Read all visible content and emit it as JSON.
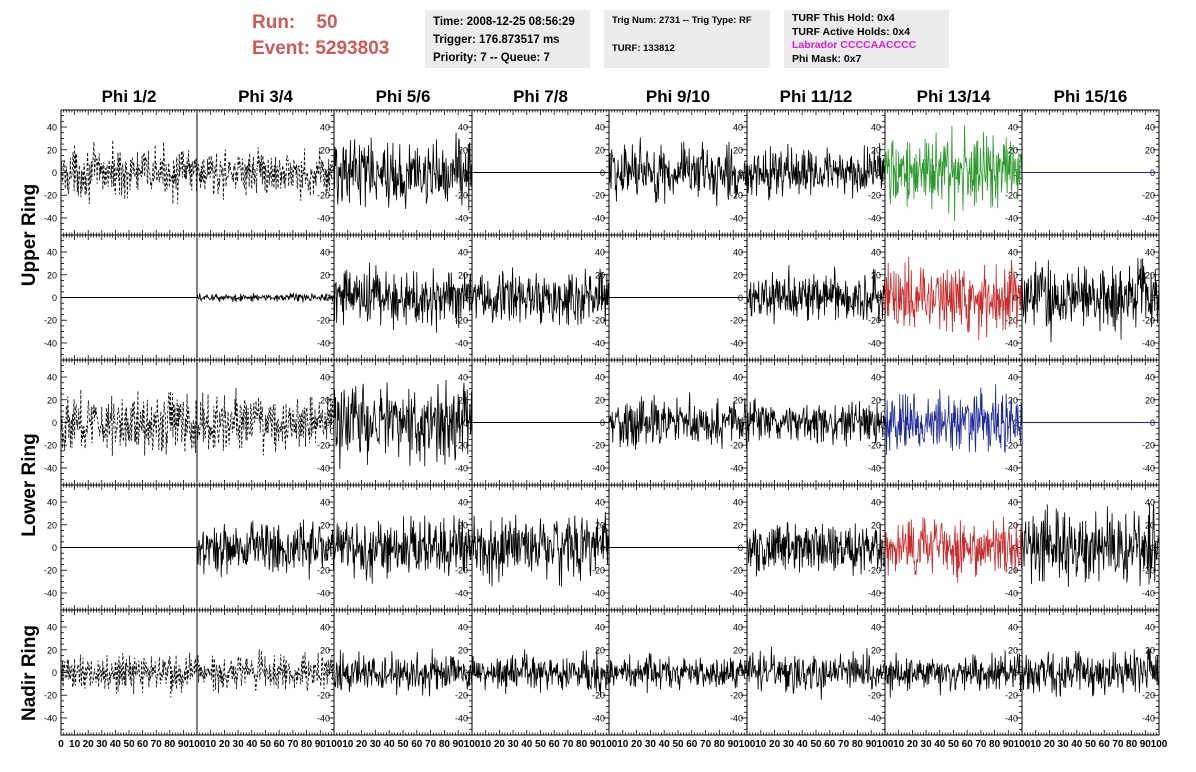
{
  "header": {
    "run_label": "Run:",
    "run_value": "50",
    "event_label": "Event:",
    "event_value": "5293803",
    "time_line": "Time: 2008-12-25 08:56:29",
    "trigger_line": "Trigger: 176.873517 ms",
    "priority_line": "Priority: 7 -- Queue: 7",
    "trig_line": "Trig Num: 2731 -- Trig Type: RF",
    "turf_line": "TURF: 133812",
    "turf_hold_line": "TURF This Hold: 0x4",
    "turf_active_line": "TURF Active Holds: 0x4",
    "labrador_line": "Labrador CCCCAACCCC",
    "phi_mask_line": "Phi Mask: 0x7"
  },
  "colors": {
    "run_text": "#cc5a55",
    "labrador_text": "#e01ad6",
    "trace_default": "#000000",
    "trace_green": "#2a9a2a",
    "trace_red": "#cc2a2a",
    "trace_blue": "#1e2a9a",
    "info_box_bg": "#ececec"
  },
  "chart_data": {
    "type": "line",
    "columns": [
      "Phi 1/2",
      "Phi 3/4",
      "Phi 5/6",
      "Phi 7/8",
      "Phi 9/10",
      "Phi 11/12",
      "Phi 13/14",
      "Phi 15/16"
    ],
    "rows": [
      "Upper Ring",
      "Upper Ring",
      "Lower Ring",
      "Lower Ring",
      "Nadir Ring"
    ],
    "row_labels": [
      "Upper Ring",
      "Lower Ring",
      "Nadir Ring"
    ],
    "xlim": [
      0,
      100
    ],
    "ylim": [
      -55,
      55
    ],
    "x_ticks": [
      "0",
      "10",
      "20",
      "30",
      "40",
      "50",
      "60",
      "70",
      "80",
      "90",
      "100"
    ],
    "y_ticks": [
      "-40",
      "-20",
      "0",
      "20",
      "40"
    ],
    "panels": [
      [
        {
          "style": "dashed",
          "amp": 18,
          "color": "trace_default"
        },
        {
          "style": "dashed",
          "amp": 16,
          "color": "trace_default"
        },
        {
          "style": "noise",
          "amp": 25,
          "color": "trace_default"
        },
        {
          "style": "flat",
          "amp": 0,
          "color": "trace_default"
        },
        {
          "style": "noise",
          "amp": 22,
          "color": "trace_default"
        },
        {
          "style": "noise",
          "amp": 18,
          "color": "trace_default"
        },
        {
          "style": "noise",
          "amp": 28,
          "color": "trace_green"
        },
        {
          "style": "flat",
          "amp": 0,
          "color": "trace_blue"
        }
      ],
      [
        {
          "style": "flat",
          "amp": 0,
          "color": "trace_default"
        },
        {
          "style": "noise",
          "amp": 3,
          "color": "trace_default"
        },
        {
          "style": "noise",
          "amp": 22,
          "color": "trace_default"
        },
        {
          "style": "noise",
          "amp": 20,
          "color": "trace_default"
        },
        {
          "style": "flat",
          "amp": 0,
          "color": "trace_default"
        },
        {
          "style": "noise",
          "amp": 18,
          "color": "trace_default"
        },
        {
          "style": "noise",
          "amp": 25,
          "color": "trace_red"
        },
        {
          "style": "noise",
          "amp": 25,
          "color": "trace_default"
        }
      ],
      [
        {
          "style": "dashed",
          "amp": 22,
          "color": "trace_default"
        },
        {
          "style": "dashed",
          "amp": 20,
          "color": "trace_default"
        },
        {
          "style": "noise",
          "amp": 28,
          "color": "trace_default"
        },
        {
          "style": "flat",
          "amp": 0,
          "color": "trace_default"
        },
        {
          "style": "noise",
          "amp": 18,
          "color": "trace_default"
        },
        {
          "style": "noise",
          "amp": 16,
          "color": "trace_default"
        },
        {
          "style": "noise",
          "amp": 22,
          "color": "trace_blue"
        },
        {
          "style": "flat",
          "amp": 0,
          "color": "trace_blue"
        }
      ],
      [
        {
          "style": "flat",
          "amp": 0,
          "color": "trace_default"
        },
        {
          "style": "noise",
          "amp": 20,
          "color": "trace_default"
        },
        {
          "style": "noise",
          "amp": 22,
          "color": "trace_default"
        },
        {
          "style": "noise",
          "amp": 24,
          "color": "trace_default"
        },
        {
          "style": "flat",
          "amp": 0,
          "color": "trace_default"
        },
        {
          "style": "noise",
          "amp": 18,
          "color": "trace_default"
        },
        {
          "style": "noise",
          "amp": 20,
          "color": "trace_red"
        },
        {
          "style": "noise",
          "amp": 26,
          "color": "trace_default"
        }
      ],
      [
        {
          "style": "dashed",
          "amp": 15,
          "color": "trace_default"
        },
        {
          "style": "dashed",
          "amp": 13,
          "color": "trace_default"
        },
        {
          "style": "noise",
          "amp": 14,
          "color": "trace_default"
        },
        {
          "style": "noise",
          "amp": 14,
          "color": "trace_default"
        },
        {
          "style": "noise",
          "amp": 12,
          "color": "trace_default"
        },
        {
          "style": "noise",
          "amp": 15,
          "color": "trace_default"
        },
        {
          "style": "noise",
          "amp": 14,
          "color": "trace_default"
        },
        {
          "style": "noise",
          "amp": 16,
          "color": "trace_default"
        }
      ]
    ]
  }
}
